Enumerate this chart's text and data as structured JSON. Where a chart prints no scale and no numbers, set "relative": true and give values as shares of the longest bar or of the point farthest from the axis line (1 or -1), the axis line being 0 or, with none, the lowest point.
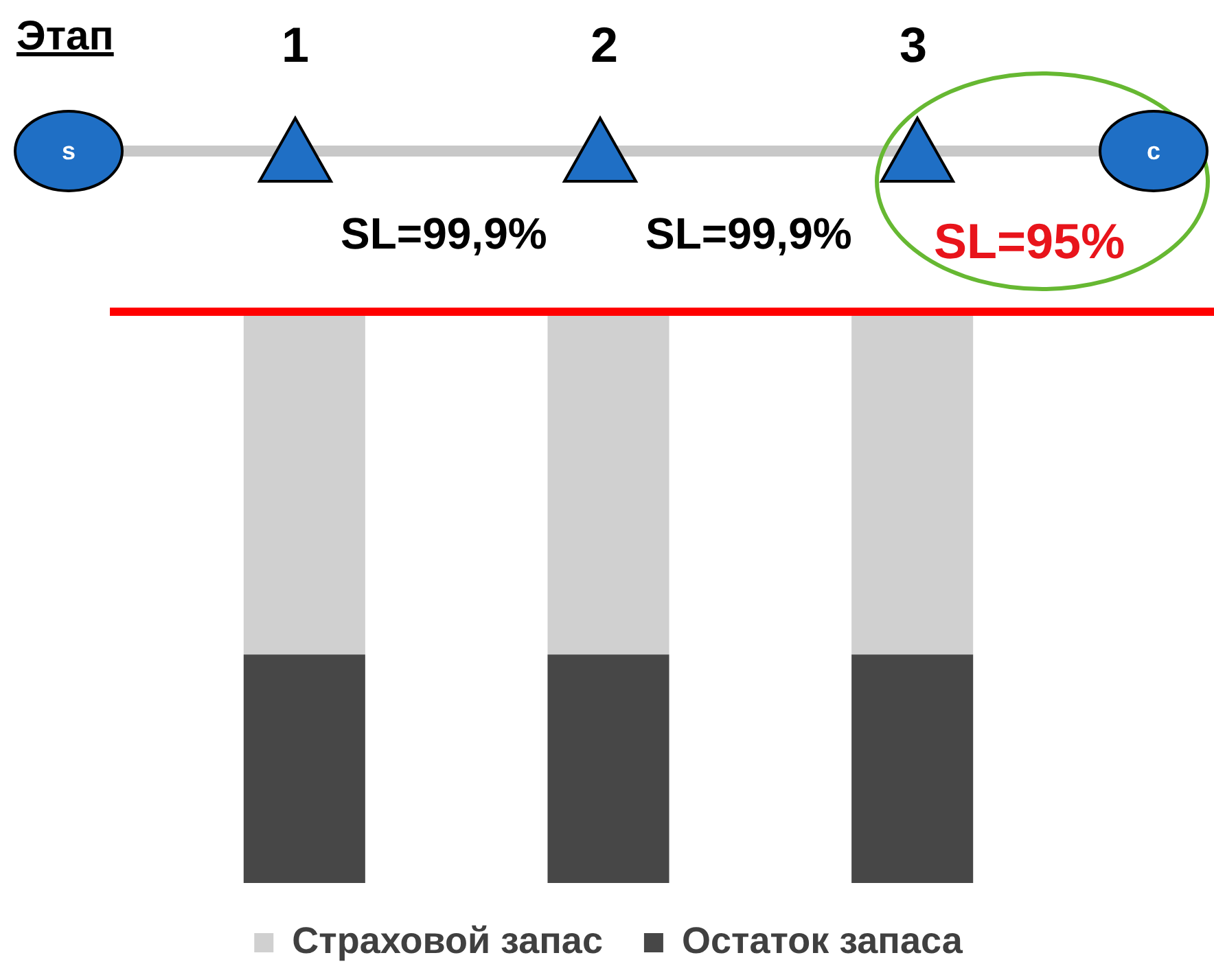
{
  "chart_data": {
    "type": "bar",
    "relative": true,
    "stacked": true,
    "categories": [
      null,
      null,
      null
    ],
    "series": [
      {
        "name": "Остаток запаса",
        "color": "#474747",
        "values": [
          0.4,
          0.4,
          0.4
        ]
      },
      {
        "name": "Страховой запас",
        "color": "#d0d0d0",
        "values": [
          0.6,
          0.6,
          0.6
        ]
      }
    ],
    "ref_lines": [
      {
        "axis": "y",
        "value": 1,
        "color": "#ff0000"
      }
    ],
    "legend": "bottom",
    "grid": false,
    "annotations": [
      "Этап",
      "1",
      "2",
      "3",
      "s",
      "c",
      "SL=99,9%",
      "SL=99,9%",
      "SL=95%"
    ]
  }
}
